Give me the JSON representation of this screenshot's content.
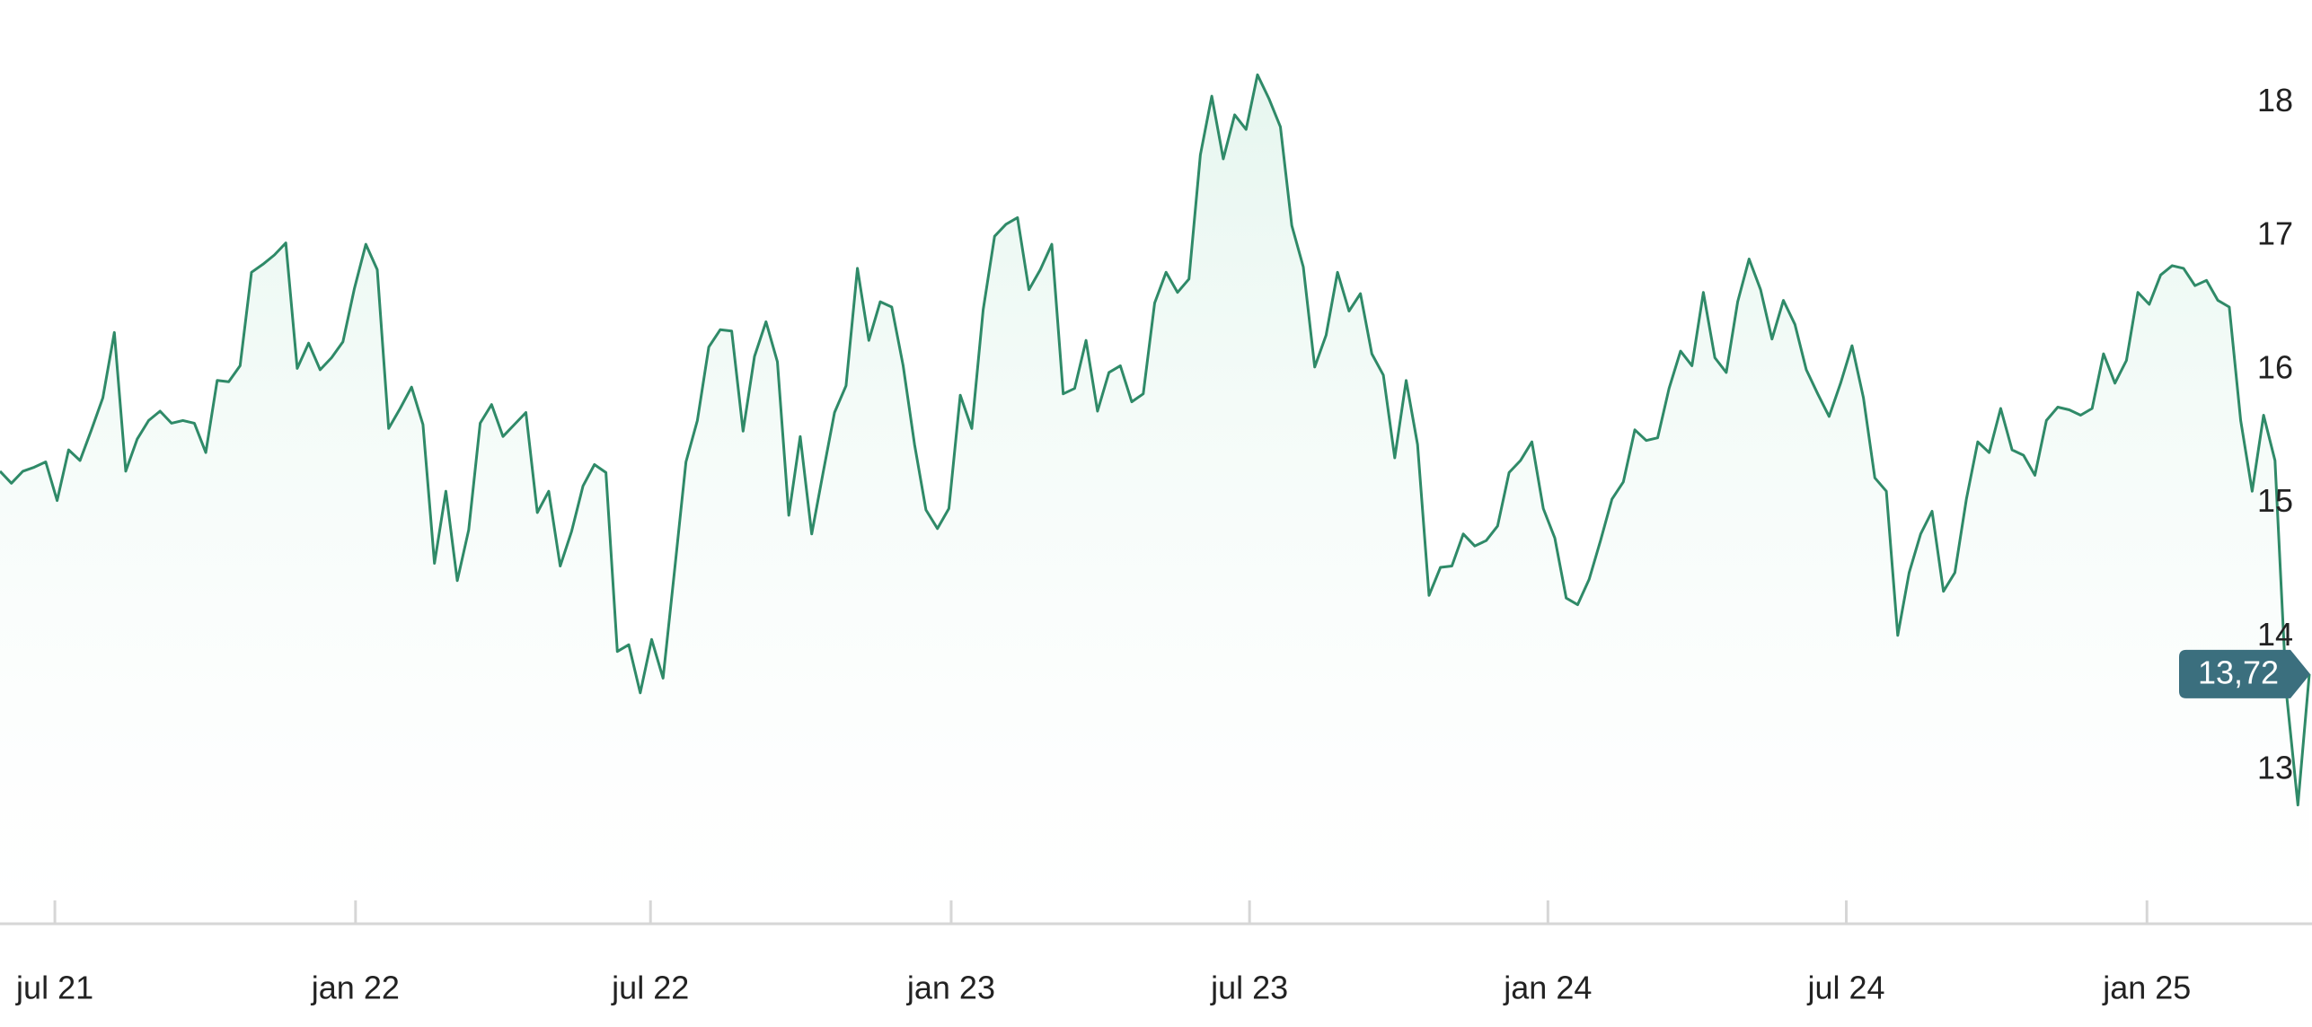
{
  "chart_data": {
    "type": "line",
    "color": "#2f8a68",
    "values": [
      15.24,
      15.15,
      15.24,
      15.27,
      15.31,
      15.02,
      15.4,
      15.32,
      15.55,
      15.79,
      16.28,
      15.24,
      15.48,
      15.62,
      15.69,
      15.6,
      15.62,
      15.6,
      15.38,
      15.92,
      15.91,
      16.03,
      16.73,
      16.79,
      16.86,
      16.95,
      16.01,
      16.2,
      16.0,
      16.09,
      16.21,
      16.61,
      16.94,
      16.75,
      15.56,
      15.71,
      15.87,
      15.59,
      14.55,
      15.09,
      14.42,
      14.8,
      15.6,
      15.74,
      15.5,
      15.59,
      15.68,
      14.93,
      15.09,
      14.53,
      14.79,
      15.13,
      15.29,
      15.23,
      13.89,
      13.94,
      13.58,
      13.98,
      13.69,
      14.49,
      15.31,
      15.62,
      16.17,
      16.3,
      16.29,
      15.54,
      16.1,
      16.36,
      16.06,
      14.91,
      15.5,
      14.77,
      15.23,
      15.68,
      15.88,
      16.76,
      16.22,
      16.51,
      16.47,
      16.03,
      15.44,
      14.95,
      14.81,
      14.96,
      15.81,
      15.56,
      16.45,
      17.0,
      17.09,
      17.14,
      16.6,
      16.75,
      16.94,
      15.82,
      15.86,
      16.22,
      15.69,
      15.98,
      16.03,
      15.76,
      15.82,
      16.5,
      16.73,
      16.58,
      16.68,
      17.61,
      18.05,
      17.58,
      17.91,
      17.8,
      18.21,
      18.03,
      17.82,
      17.08,
      16.77,
      16.02,
      16.26,
      16.73,
      16.44,
      16.57,
      16.12,
      15.96,
      15.34,
      15.92,
      15.44,
      14.31,
      14.52,
      14.53,
      14.77,
      14.68,
      14.72,
      14.83,
      15.23,
      15.32,
      15.46,
      14.96,
      14.74,
      14.29,
      14.24,
      14.43,
      14.72,
      15.03,
      15.16,
      15.55,
      15.47,
      15.49,
      15.86,
      16.14,
      16.03,
      16.58,
      16.09,
      15.98,
      16.51,
      16.83,
      16.6,
      16.23,
      16.52,
      16.34,
      16.0,
      15.82,
      15.65,
      15.9,
      16.18,
      15.79,
      15.19,
      15.09,
      14.01,
      14.48,
      14.77,
      14.94,
      14.34,
      14.48,
      15.03,
      15.46,
      15.38,
      15.71,
      15.4,
      15.36,
      15.21,
      15.62,
      15.72,
      15.7,
      15.66,
      15.71,
      16.12,
      15.9,
      16.07,
      16.58,
      16.49,
      16.71,
      16.78,
      16.76,
      16.63,
      16.67,
      16.52,
      16.47,
      15.62,
      15.09,
      15.66,
      15.32,
      13.58,
      12.74,
      13.72
    ],
    "last_label": {
      "value": 13.72,
      "label": "13,72"
    },
    "xlim": [
      0,
      202
    ],
    "xticks": [
      {
        "value": 4.8,
        "label": "jul 21"
      },
      {
        "value": 31.1,
        "label": "jan 22"
      },
      {
        "value": 56.9,
        "label": "jul 22"
      },
      {
        "value": 83.2,
        "label": "jan 23"
      },
      {
        "value": 109.3,
        "label": "jul 23"
      },
      {
        "value": 135.4,
        "label": "jan 24"
      },
      {
        "value": 161.5,
        "label": "jul 24"
      },
      {
        "value": 187.8,
        "label": "jan 25"
      }
    ],
    "ylim": [
      11.85,
      18.77
    ],
    "yticks": [
      13,
      14,
      15,
      16,
      17,
      18
    ],
    "area_fill": true
  }
}
